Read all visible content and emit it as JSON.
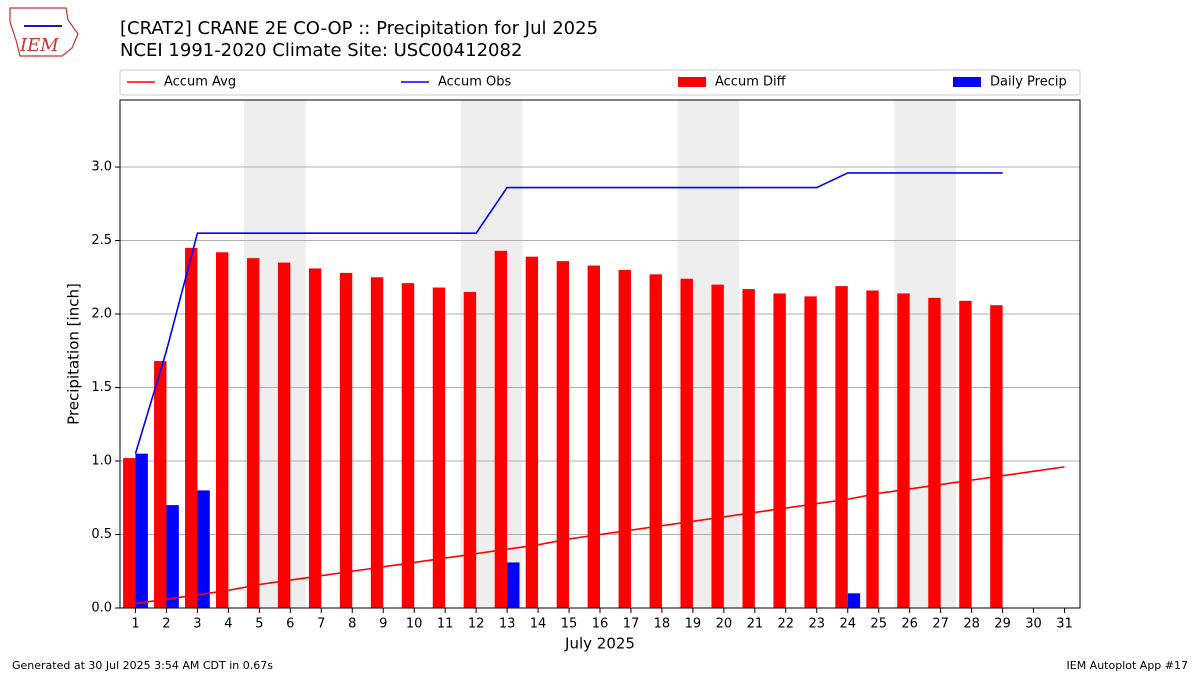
{
  "chart_data": {
    "type": "bar_line",
    "title": "[CRAT2] CRANE 2E CO-OP :: Precipitation for Jul 2025",
    "subtitle": "NCEI 1991-2020 Climate Site: USC00412082",
    "xlabel": "July 2025",
    "ylabel": "Precipitation [inch]",
    "footer_left": "Generated at 30 Jul 2025 3:54 AM CDT in 0.67s",
    "footer_right": "IEM Autoplot App #17",
    "logo_text": "IEM",
    "x": [
      1,
      2,
      3,
      4,
      5,
      6,
      7,
      8,
      9,
      10,
      11,
      12,
      13,
      14,
      15,
      16,
      17,
      18,
      19,
      20,
      21,
      22,
      23,
      24,
      25,
      26,
      27,
      28,
      29,
      30,
      31
    ],
    "xlim": [
      0.5,
      31.5
    ],
    "xticks": [
      1,
      2,
      3,
      4,
      5,
      6,
      7,
      8,
      9,
      10,
      11,
      12,
      13,
      14,
      15,
      16,
      17,
      18,
      19,
      20,
      21,
      22,
      23,
      24,
      25,
      26,
      27,
      28,
      29,
      30,
      31
    ],
    "ylim": [
      0,
      3.456
    ],
    "yticks": [
      {
        "value": 0,
        "label": "0.0"
      },
      0.5,
      {
        "value": 1,
        "label": "1.0"
      },
      1.5,
      {
        "value": 2,
        "label": "2.0"
      },
      2.5,
      {
        "value": 3,
        "label": "3.0"
      }
    ],
    "grid": true,
    "shaded_spans": [
      [
        4.5,
        6.5
      ],
      [
        11.5,
        13.5
      ],
      [
        18.5,
        20.5
      ],
      [
        25.5,
        27.5
      ]
    ],
    "shade_color": "#eeeeee",
    "series": [
      {
        "name": "Accum Avg",
        "kind": "line",
        "color": "#ff0000",
        "values": [
          0.03,
          0.06,
          0.09,
          0.12,
          0.16,
          0.19,
          0.22,
          0.25,
          0.28,
          0.31,
          0.34,
          0.37,
          0.4,
          0.43,
          0.47,
          0.5,
          0.53,
          0.56,
          0.59,
          0.62,
          0.65,
          0.68,
          0.71,
          0.74,
          0.78,
          0.81,
          0.84,
          0.87,
          0.9,
          0.93,
          0.96
        ]
      },
      {
        "name": "Accum Obs",
        "kind": "line",
        "color": "#0000ff",
        "values": [
          1.05,
          1.75,
          2.55,
          2.55,
          2.55,
          2.55,
          2.55,
          2.55,
          2.55,
          2.55,
          2.55,
          2.55,
          2.86,
          2.86,
          2.86,
          2.86,
          2.86,
          2.86,
          2.86,
          2.86,
          2.86,
          2.86,
          2.86,
          2.96,
          2.96,
          2.96,
          2.96,
          2.96,
          2.96,
          null,
          null
        ]
      },
      {
        "name": "Accum Diff",
        "kind": "bar",
        "color": "#ff0000",
        "offset": -0.4,
        "values": [
          1.02,
          1.68,
          2.45,
          2.42,
          2.38,
          2.35,
          2.31,
          2.28,
          2.25,
          2.21,
          2.18,
          2.15,
          2.43,
          2.39,
          2.36,
          2.33,
          2.3,
          2.27,
          2.24,
          2.2,
          2.17,
          2.14,
          2.12,
          2.19,
          2.16,
          2.14,
          2.11,
          2.09,
          2.06,
          null,
          null
        ]
      },
      {
        "name": "Daily Precip",
        "kind": "bar",
        "color": "#0000ff",
        "offset": 0,
        "values": [
          1.05,
          0.7,
          0.8,
          0,
          0,
          0,
          0,
          0,
          0,
          0,
          0,
          0,
          0.31,
          0,
          0,
          0,
          0,
          0,
          0,
          0,
          0,
          0,
          0,
          0.1,
          0,
          0,
          0,
          0,
          0,
          null,
          null
        ]
      }
    ]
  }
}
